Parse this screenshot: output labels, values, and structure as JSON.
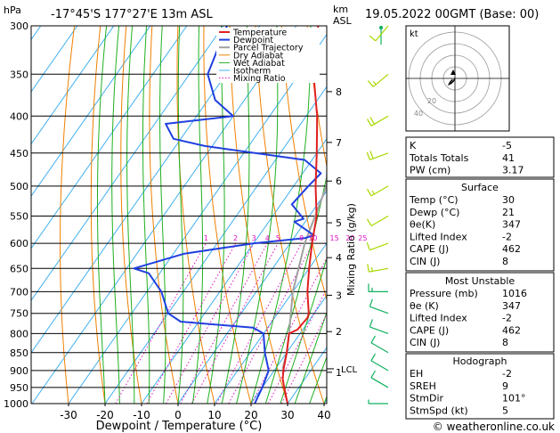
{
  "header": {
    "hpa_label": "hPa",
    "location": "-17°45'S  177°27'E  13m  ASL",
    "km_label": "km",
    "asl_label": "ASL",
    "datetime": "19.05.2022  00GMT  (Base: 00)"
  },
  "footer": {
    "credit": "© weatheronline.co.uk"
  },
  "colors": {
    "temperature": "#e02020",
    "dewpoint": "#2040e0",
    "parcel": "#a0a0a0",
    "dry_adiabat": "#f08000",
    "wet_adiabat": "#20b020",
    "isotherm": "#40b0f0",
    "mixing_ratio": "#e010c0",
    "wind_barb": "#a8d800",
    "wind_barb_low": "#10b060"
  },
  "chart_data": [
    {
      "type": "skew-t",
      "xlabel": "Dewpoint / Temperature (°C)",
      "ylabel_right": "Mixing Ratio (g/kg)",
      "y_scale": "log",
      "ylim": [
        1000,
        300
      ],
      "xlim": [
        -35,
        40
      ],
      "pressure_ticks": [
        300,
        350,
        400,
        450,
        500,
        550,
        600,
        650,
        700,
        750,
        800,
        850,
        900,
        950,
        1000
      ],
      "temperature_ticks": [
        -30,
        -20,
        -10,
        0,
        10,
        20,
        30,
        40
      ],
      "km_ticks": [
        {
          "label": "8",
          "p": 370
        },
        {
          "label": "7",
          "p": 435
        },
        {
          "label": "6",
          "p": 492
        },
        {
          "label": "5",
          "p": 562
        },
        {
          "label": "4",
          "p": 628
        },
        {
          "label": "3",
          "p": 708
        },
        {
          "label": "2",
          "p": 795
        },
        {
          "label": "1",
          "p": 905
        }
      ],
      "lcl": {
        "label": "LCL",
        "p": 895
      },
      "mixing_ratio_labels": [
        "1",
        "2",
        "3",
        "4",
        "5",
        "8",
        "10",
        "15",
        "20",
        "25"
      ],
      "legend": [
        "Temperature",
        "Dewpoint",
        "Parcel Trajectory",
        "Dry Adiabat",
        "Wet Adiabat",
        "Isotherm",
        "Mixing Ratio"
      ],
      "series": [
        {
          "name": "Temperature",
          "p": [
            1000,
            950,
            925,
            900,
            850,
            800,
            790,
            760,
            750,
            700,
            650,
            600,
            550,
            500,
            450,
            400,
            350,
            300
          ],
          "t": [
            30,
            26,
            24,
            22.5,
            20,
            17,
            18.5,
            19,
            18.5,
            14,
            10,
            6,
            2,
            -4,
            -10,
            -17,
            -26,
            -34
          ]
        },
        {
          "name": "Dewpoint",
          "p": [
            1000,
            950,
            900,
            850,
            800,
            785,
            770,
            750,
            700,
            660,
            650,
            620,
            600,
            590,
            585,
            560,
            555,
            530,
            500,
            480,
            460,
            440,
            430,
            410,
            400,
            380,
            350,
            300
          ],
          "t": [
            21,
            20,
            18.5,
            14,
            10,
            6,
            -15,
            -20,
            -26,
            -33,
            -38,
            -27,
            -10,
            3,
            5,
            -3,
            -1,
            -7,
            -6,
            -5,
            -12,
            -42,
            -52,
            -57,
            -40,
            -48,
            -55,
            -59
          ]
        },
        {
          "name": "Parcel Trajectory",
          "p": [
            895,
            850,
            800,
            700,
            600,
            500,
            450
          ],
          "t": [
            22,
            20,
            17,
            10,
            4,
            -1,
            -7
          ]
        }
      ],
      "wind_barbs": [
        {
          "p": 1000,
          "dir": 270,
          "kt": 5
        },
        {
          "p": 950,
          "dir": 300,
          "kt": 10
        },
        {
          "p": 900,
          "dir": 300,
          "kt": 10
        },
        {
          "p": 850,
          "dir": 300,
          "kt": 10
        },
        {
          "p": 800,
          "dir": 290,
          "kt": 10
        },
        {
          "p": 750,
          "dir": 290,
          "kt": 10
        },
        {
          "p": 700,
          "dir": 270,
          "kt": 15
        },
        {
          "p": 650,
          "dir": 260,
          "kt": 15
        },
        {
          "p": 600,
          "dir": 250,
          "kt": 10
        },
        {
          "p": 550,
          "dir": 240,
          "kt": 10
        },
        {
          "p": 500,
          "dir": 240,
          "kt": 15
        },
        {
          "p": 450,
          "dir": 250,
          "kt": 20
        },
        {
          "p": 400,
          "dir": 240,
          "kt": 20
        },
        {
          "p": 350,
          "dir": 230,
          "kt": 15
        },
        {
          "p": 300,
          "dir": 220,
          "kt": 10
        }
      ]
    },
    {
      "type": "hodograph",
      "label": "kt",
      "ring_labels": [
        "20",
        "40"
      ],
      "u": [
        0,
        -1,
        -3,
        -5,
        -4,
        -2
      ],
      "v": [
        0,
        -2,
        -4,
        -5,
        -3,
        -1
      ]
    }
  ],
  "indices": {
    "top": [
      {
        "label": "K",
        "value": "-5"
      },
      {
        "label": "Totals Totals",
        "value": "41"
      },
      {
        "label": "PW (cm)",
        "value": "3.17"
      }
    ],
    "surface": {
      "title": "Surface",
      "rows": [
        {
          "label": "Temp (°C)",
          "value": "30"
        },
        {
          "label": "Dewp (°C)",
          "value": "21"
        },
        {
          "label": "θe(K)",
          "value": "347"
        },
        {
          "label": "Lifted Index",
          "value": "-2"
        },
        {
          "label": "CAPE (J)",
          "value": "462"
        },
        {
          "label": "CIN (J)",
          "value": "8"
        }
      ]
    },
    "unstable": {
      "title": "Most Unstable",
      "rows": [
        {
          "label": "Pressure (mb)",
          "value": "1016"
        },
        {
          "label": "θe (K)",
          "value": "347"
        },
        {
          "label": "Lifted Index",
          "value": "-2"
        },
        {
          "label": "CAPE (J)",
          "value": "462"
        },
        {
          "label": "CIN (J)",
          "value": "8"
        }
      ]
    },
    "hodograph": {
      "title": "Hodograph",
      "rows": [
        {
          "label": "EH",
          "value": "-2"
        },
        {
          "label": "SREH",
          "value": "9"
        },
        {
          "label": "StmDir",
          "value": "101°"
        },
        {
          "label": "StmSpd (kt)",
          "value": "5"
        }
      ]
    }
  }
}
